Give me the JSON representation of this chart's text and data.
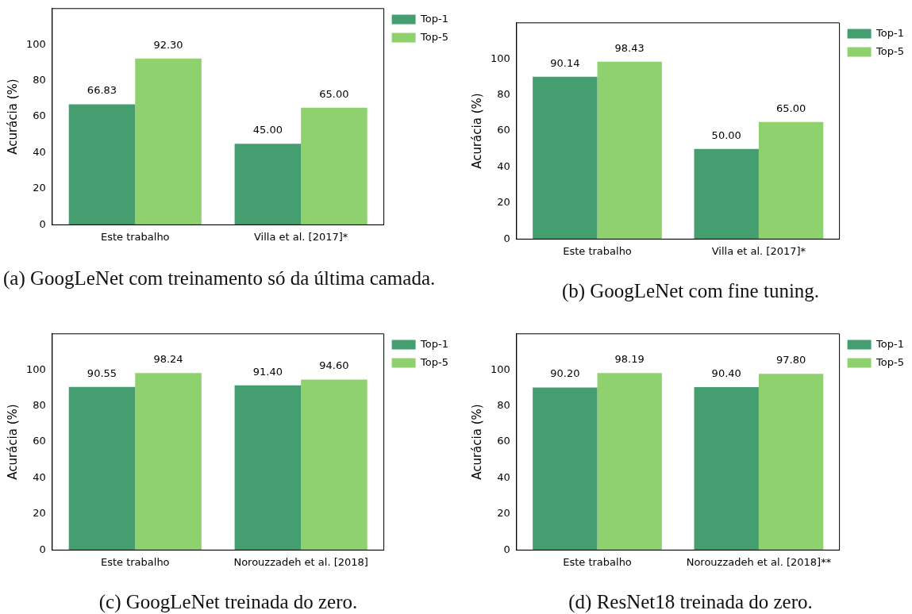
{
  "chart_data": [
    {
      "type": "bar",
      "categories": [
        "Este trabalho",
        "Villa et al. [2017]*"
      ],
      "ylabel": "Acurácia (%)",
      "ylim": [
        0,
        120
      ],
      "yticks": [
        0,
        20,
        40,
        60,
        80,
        100
      ],
      "grid": false,
      "legend": "top right",
      "annotations": [
        "(a) GoogLeNet com treinamento só da última camada."
      ],
      "series": [
        {
          "name": "Top-1",
          "color": "#459e70",
          "values": [
            66.83,
            45.0
          ],
          "value_labels": [
            "66.83",
            "45.00"
          ]
        },
        {
          "name": "Top-5",
          "color": "#8fd16e",
          "values": [
            92.3,
            65.0
          ],
          "value_labels": [
            "92.30",
            "65.00"
          ]
        }
      ]
    },
    {
      "type": "bar",
      "categories": [
        "Este trabalho",
        "Villa et al. [2017]*"
      ],
      "ylabel": "Acurácia (%)",
      "ylim": [
        0,
        120
      ],
      "yticks": [
        0,
        20,
        40,
        60,
        80,
        100
      ],
      "grid": false,
      "legend": "top right",
      "annotations": [
        "(b) GoogLeNet com fine tuning."
      ],
      "series": [
        {
          "name": "Top-1",
          "color": "#459e70",
          "values": [
            90.14,
            50.0
          ],
          "value_labels": [
            "90.14",
            "50.00"
          ]
        },
        {
          "name": "Top-5",
          "color": "#8fd16e",
          "values": [
            98.43,
            65.0
          ],
          "value_labels": [
            "98.43",
            "65.00"
          ]
        }
      ]
    },
    {
      "type": "bar",
      "categories": [
        "Este trabalho",
        "Norouzzadeh et al. [2018]"
      ],
      "ylabel": "Acurácia (%)",
      "ylim": [
        0,
        120
      ],
      "yticks": [
        0,
        20,
        40,
        60,
        80,
        100
      ],
      "grid": false,
      "legend": "top right",
      "annotations": [
        "(c) GoogLeNet treinada do zero."
      ],
      "series": [
        {
          "name": "Top-1",
          "color": "#459e70",
          "values": [
            90.55,
            91.4
          ],
          "value_labels": [
            "90.55",
            "91.40"
          ]
        },
        {
          "name": "Top-5",
          "color": "#8fd16e",
          "values": [
            98.24,
            94.6
          ],
          "value_labels": [
            "98.24",
            "94.60"
          ]
        }
      ]
    },
    {
      "type": "bar",
      "categories": [
        "Este trabalho",
        "Norouzzadeh et al. [2018]**"
      ],
      "ylabel": "Acurácia (%)",
      "ylim": [
        0,
        120
      ],
      "yticks": [
        0,
        20,
        40,
        60,
        80,
        100
      ],
      "grid": false,
      "legend": "top right",
      "annotations": [
        "(d) ResNet18 treinada do zero."
      ],
      "series": [
        {
          "name": "Top-1",
          "color": "#459e70",
          "values": [
            90.2,
            90.4
          ],
          "value_labels": [
            "90.20",
            "90.40"
          ]
        },
        {
          "name": "Top-5",
          "color": "#8fd16e",
          "values": [
            98.19,
            97.8
          ],
          "value_labels": [
            "98.19",
            "97.80"
          ]
        }
      ]
    }
  ]
}
